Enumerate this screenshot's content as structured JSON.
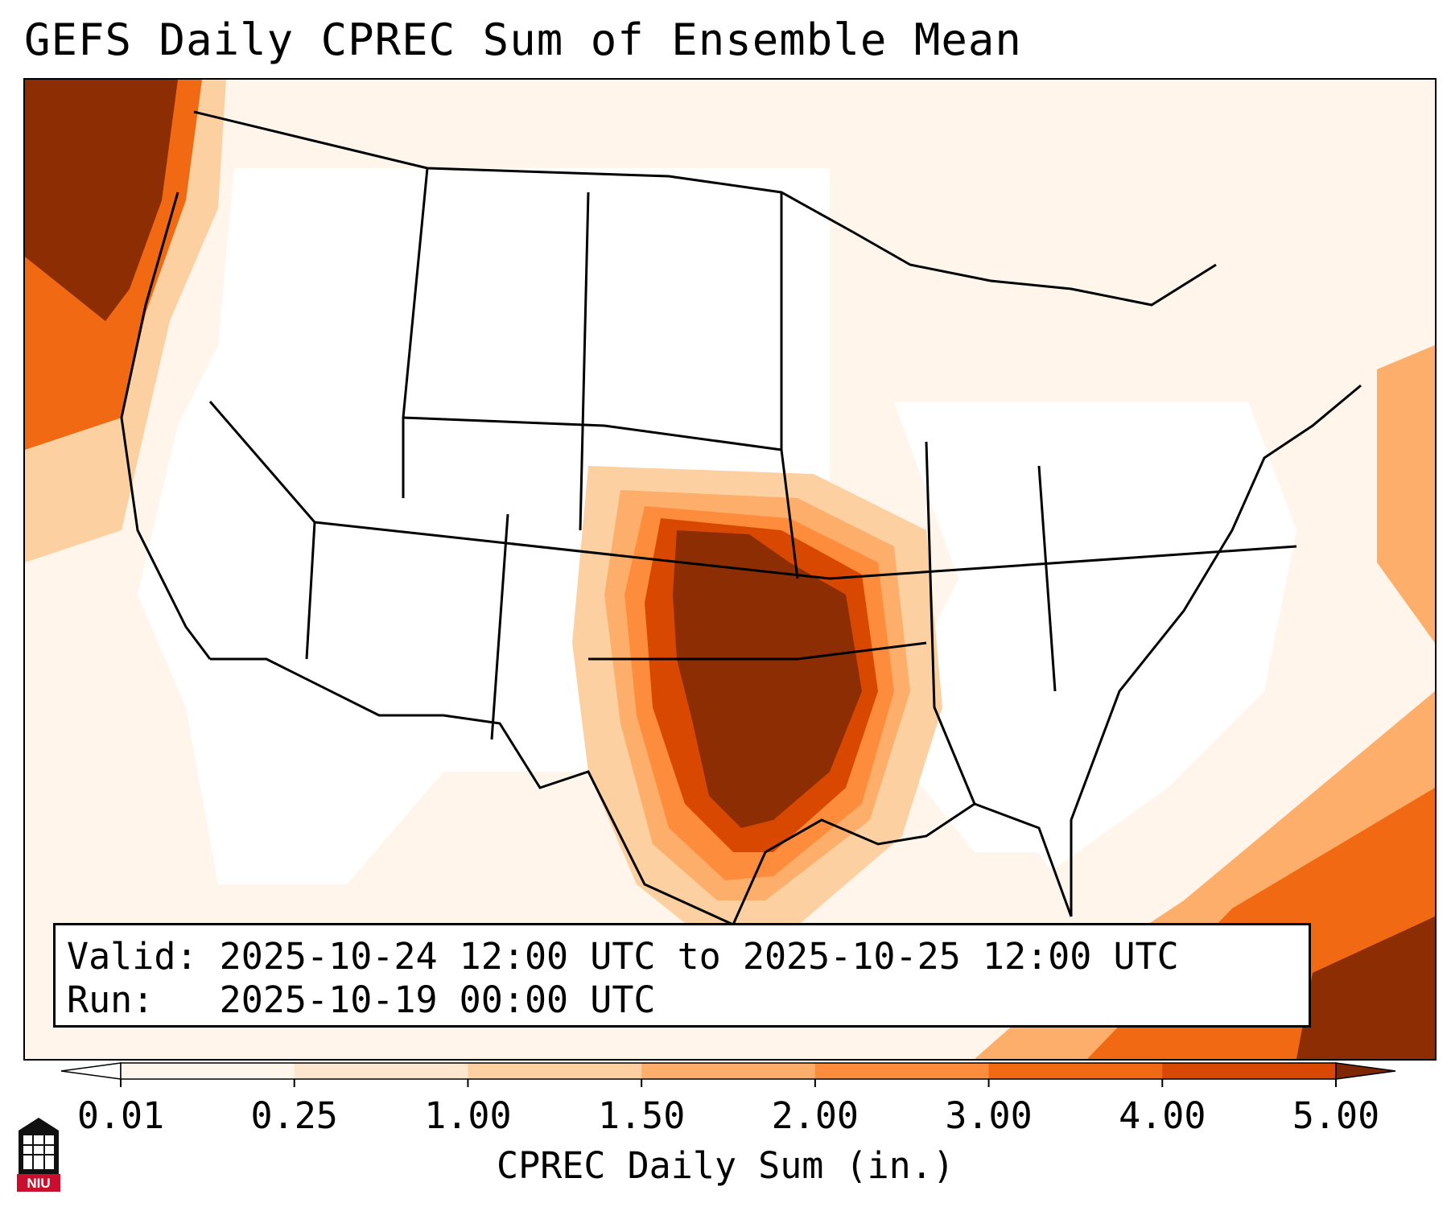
{
  "title": "GEFS Daily CPREC Sum of Ensemble Mean",
  "info": {
    "valid_label": "Valid:",
    "valid_value": "2025-10-24 12:00 UTC to 2025-10-25 12:00 UTC",
    "run_label": "Run:",
    "run_value": "2025-10-19 00:00 UTC"
  },
  "colorbar": {
    "label": "CPREC Daily Sum (in.)",
    "ticks": [
      "0.01",
      "0.25",
      "1.00",
      "1.50",
      "2.00",
      "3.00",
      "4.00",
      "5.00"
    ],
    "colors": [
      "#fff5eb",
      "#fee6ce",
      "#fdd0a2",
      "#fdae6b",
      "#fd8d3c",
      "#f16913",
      "#d94801",
      "#8c2d04"
    ],
    "under_color": "#ffffff",
    "over_color": "#7f2704"
  },
  "logo": {
    "text": "NIU"
  }
}
